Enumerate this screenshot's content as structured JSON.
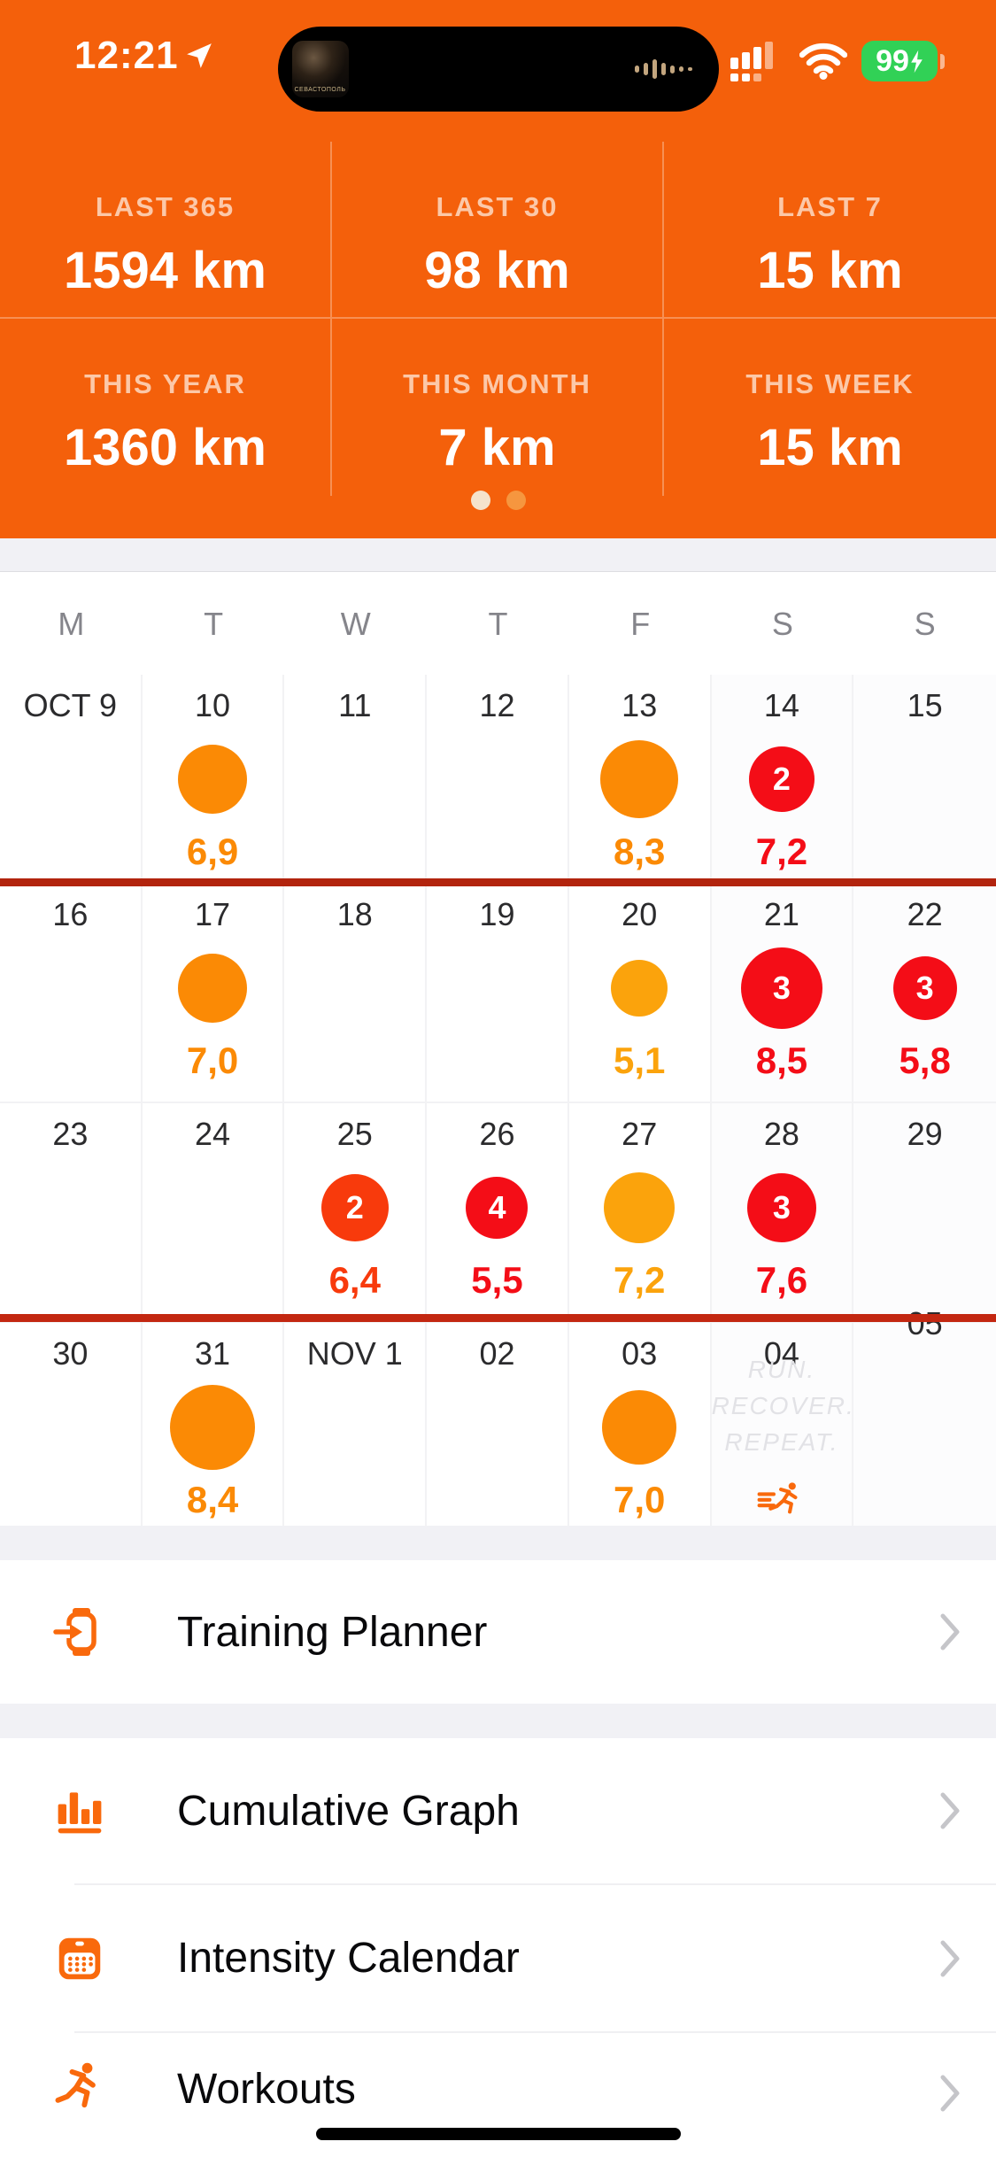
{
  "colors": {
    "header_orange": "#F4600B",
    "orange": "#FB8A05",
    "yellow_orange": "#FBA30C",
    "orange_red": "#F83A0C",
    "red": "#F40D17",
    "dark_red_1": "#B2240E",
    "dark_red_2": "#C32711",
    "accent": "#F9690C",
    "dot_active": "#F5E3CC",
    "dot_inactive": "#F6963F"
  },
  "status_bar": {
    "time": "12:21",
    "battery": "99",
    "album_text": "СЕВАСТОПОЛЬ",
    "icons": [
      "location-arrow-icon",
      "cellular-signal-icon",
      "wifi-icon",
      "battery-charging-icon"
    ]
  },
  "stats": {
    "cells": [
      {
        "label": "LAST 365",
        "value": "1594 km"
      },
      {
        "label": "LAST 30",
        "value": "98 km"
      },
      {
        "label": "LAST 7",
        "value": "15 km"
      },
      {
        "label": "THIS YEAR",
        "value": "1360 km"
      },
      {
        "label": "THIS MONTH",
        "value": "7 km"
      },
      {
        "label": "THIS WEEK",
        "value": "15 km"
      }
    ],
    "page_dots": {
      "count": 2,
      "active_index": 0
    }
  },
  "calendar": {
    "weekday_headers": [
      "M",
      "T",
      "W",
      "T",
      "F",
      "S",
      "S"
    ],
    "promo": {
      "lines": [
        "RUN.",
        "RECOVER.",
        "REPEAT."
      ],
      "icon": "fast-runner-icon"
    },
    "weeks": [
      {
        "days": [
          {
            "date": "OCT 9"
          },
          {
            "date": "10",
            "dot": {
              "color": "orange",
              "size": 78
            },
            "value": "6,9",
            "value_color": "orange"
          },
          {
            "date": "11"
          },
          {
            "date": "12"
          },
          {
            "date": "13",
            "dot": {
              "color": "orange",
              "size": 88
            },
            "value": "8,3",
            "value_color": "orange"
          },
          {
            "date": "14",
            "dot": {
              "color": "red",
              "size": 74,
              "count": "2"
            },
            "value": "7,2",
            "value_color": "red"
          },
          {
            "date": "15"
          }
        ]
      },
      {
        "separator_above": "dark_red_1",
        "days": [
          {
            "date": "16"
          },
          {
            "date": "17",
            "dot": {
              "color": "orange",
              "size": 78
            },
            "value": "7,0",
            "value_color": "orange"
          },
          {
            "date": "18"
          },
          {
            "date": "19"
          },
          {
            "date": "20",
            "dot": {
              "color": "yellow_orange",
              "size": 64
            },
            "value": "5,1",
            "value_color": "yellow_orange"
          },
          {
            "date": "21",
            "dot": {
              "color": "red",
              "size": 92,
              "count": "3"
            },
            "value": "8,5",
            "value_color": "red"
          },
          {
            "date": "22",
            "dot": {
              "color": "red",
              "size": 72,
              "count": "3"
            },
            "value": "5,8",
            "value_color": "red"
          }
        ]
      },
      {
        "days": [
          {
            "date": "23"
          },
          {
            "date": "24"
          },
          {
            "date": "25",
            "dot": {
              "color": "orange_red",
              "size": 76,
              "count": "2"
            },
            "value": "6,4",
            "value_color": "orange_red"
          },
          {
            "date": "26",
            "dot": {
              "color": "red",
              "size": 70,
              "count": "4"
            },
            "value": "5,5",
            "value_color": "red"
          },
          {
            "date": "27",
            "dot": {
              "color": "yellow_orange",
              "size": 80
            },
            "value": "7,2",
            "value_color": "yellow_orange"
          },
          {
            "date": "28",
            "dot": {
              "color": "red",
              "size": 78,
              "count": "3"
            },
            "value": "7,6",
            "value_color": "red"
          },
          {
            "date": "29"
          }
        ]
      },
      {
        "separator_above": "dark_red_2",
        "days": [
          {
            "date": "30"
          },
          {
            "date": "31",
            "dot": {
              "color": "orange",
              "size": 96
            },
            "value": "8,4",
            "value_color": "orange"
          },
          {
            "date": "NOV 1"
          },
          {
            "date": "02"
          },
          {
            "date": "03",
            "dot": {
              "color": "orange",
              "size": 84
            },
            "value": "7,0",
            "value_color": "orange"
          },
          {
            "date": "04",
            "promo": true
          },
          {
            "date": "05",
            "raised": true
          }
        ]
      }
    ]
  },
  "menu": {
    "items": [
      {
        "label": "Training Planner",
        "icon": "watch-sync-icon"
      },
      {
        "label": "Cumulative Graph",
        "icon": "bar-chart-icon"
      },
      {
        "label": "Intensity Calendar",
        "icon": "calendar-icon"
      },
      {
        "label": "Workouts",
        "icon": "runner-icon"
      }
    ]
  }
}
